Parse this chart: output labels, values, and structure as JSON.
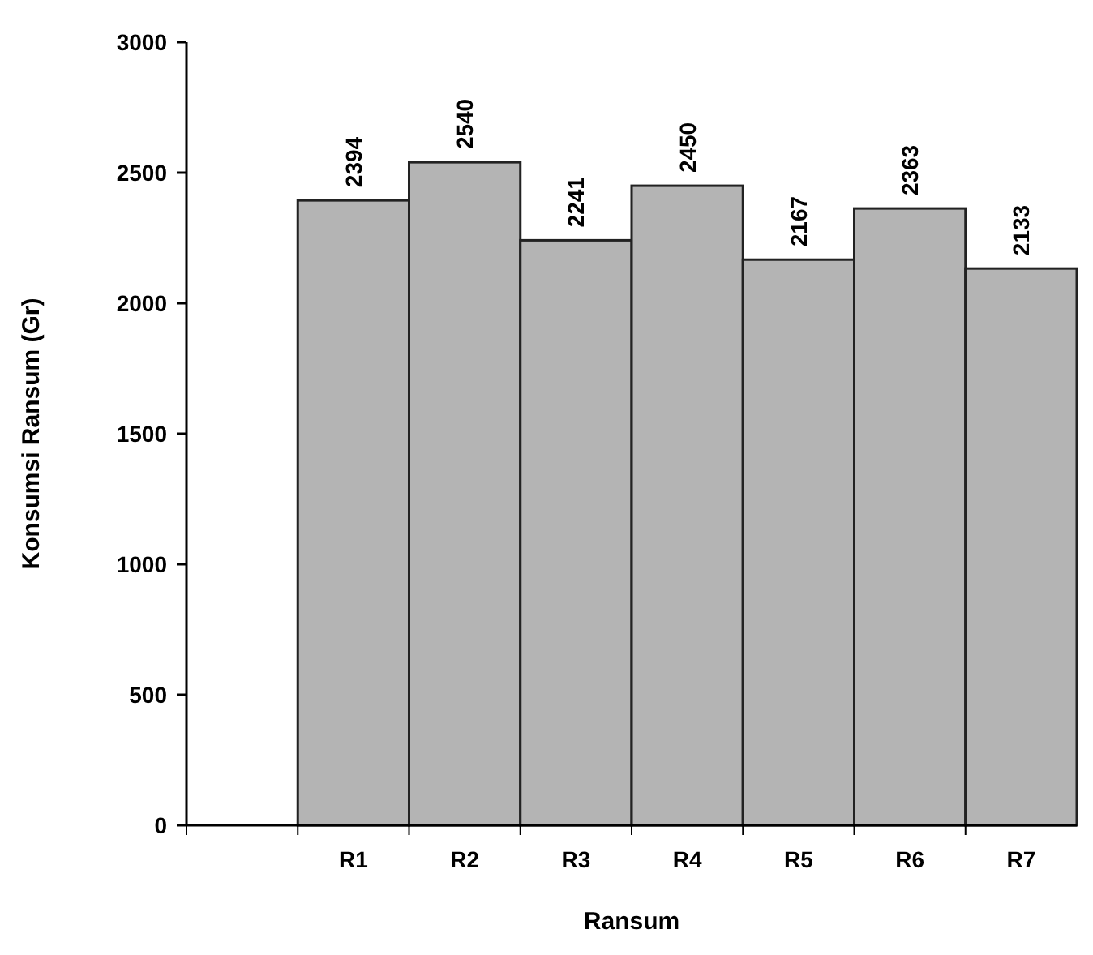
{
  "chart_data": {
    "type": "bar",
    "xlabel": "Ransum",
    "ylabel": "Konsumsi Ransum (Gr)",
    "categories": [
      null,
      "R1",
      "R2",
      "R3",
      "R4",
      "R5",
      "R6",
      "R7"
    ],
    "values": [
      null,
      2394,
      2540,
      2241,
      2450,
      2167,
      2363,
      2133
    ],
    "color": "#b4b4b4",
    "ylim": [
      0,
      3000
    ],
    "yticks": [
      0,
      500,
      1000,
      1500,
      2000,
      2500,
      3000
    ],
    "data_labels": true,
    "grid": false
  }
}
